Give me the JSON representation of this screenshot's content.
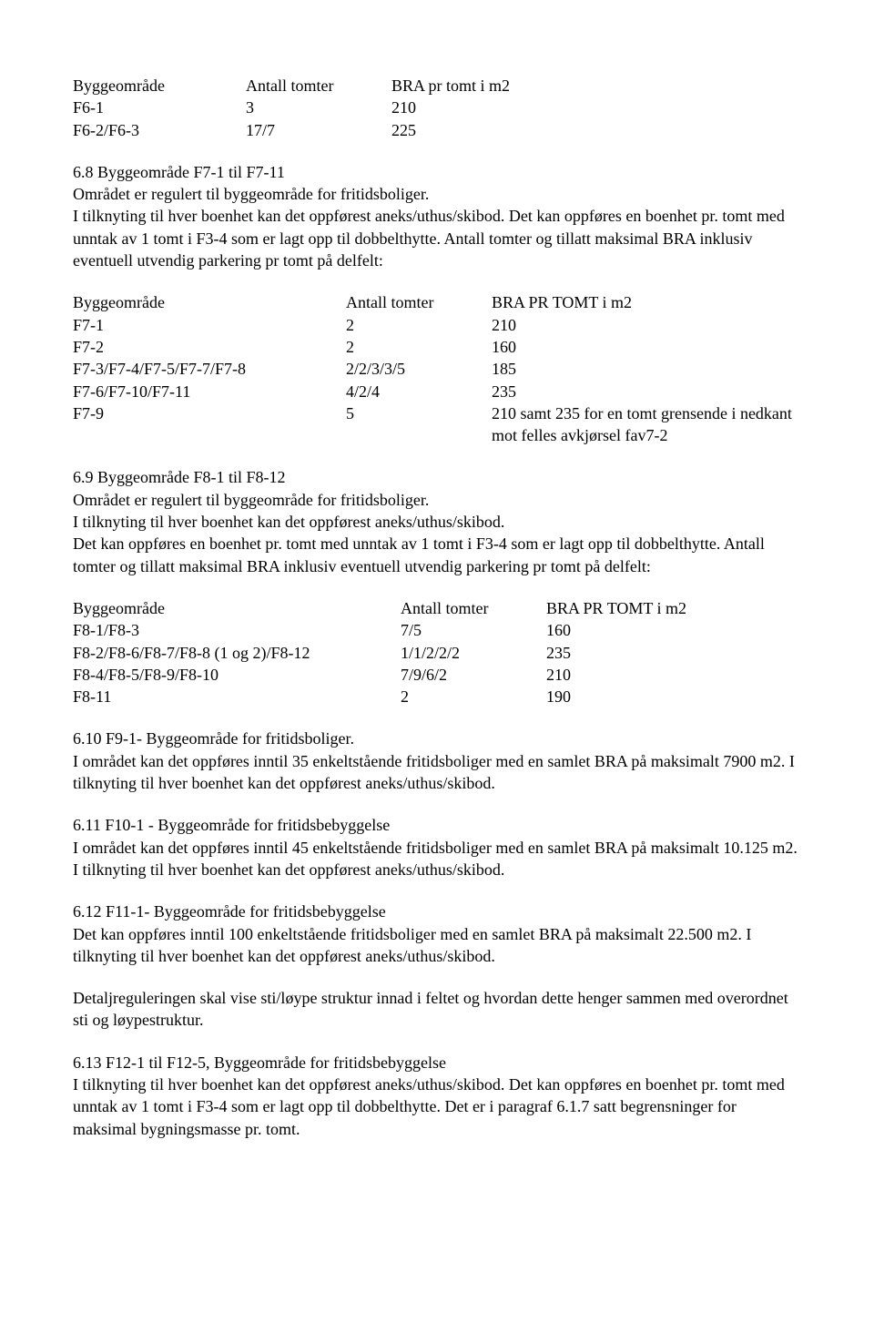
{
  "t1_head": {
    "a": "Byggeområde",
    "b": "Antall tomter",
    "c": "BRA pr tomt i m2"
  },
  "t1": [
    {
      "a": "F6-1",
      "b": "3",
      "c": "210"
    },
    {
      "a": "F6-2/F6-3",
      "b": "17/7",
      "c": "225"
    }
  ],
  "s68_title": "6.8   Byggeområde F7-1 til F7-11",
  "s68_p": "Området er regulert til byggeområde for fritidsboliger.\nI tilknyting til hver boenhet kan det oppførest aneks/uthus/skibod. Det kan oppføres en boenhet pr. tomt med unntak av 1 tomt i F3-4 som er lagt opp til dobbelthytte. Antall tomter og tillatt maksimal BRA inklusiv eventuell utvendig parkering pr tomt på delfelt:",
  "t2_head": {
    "a": "Byggeområde",
    "b": "Antall tomter",
    "c": "BRA PR TOMT i m2"
  },
  "t2": [
    {
      "a": "F7-1",
      "b": "2",
      "c": "210"
    },
    {
      "a": "F7-2",
      "b": "2",
      "c": "160"
    },
    {
      "a": "F7-3/F7-4/F7-5/F7-7/F7-8",
      "b": "2/2/3/3/5",
      "c": "185"
    },
    {
      "a": "F7-6/F7-10/F7-11",
      "b": "4/2/4",
      "c": "235"
    },
    {
      "a": "F7-9",
      "b": "5",
      "c": "210 samt 235 for en tomt grensende i nedkant mot felles avkjørsel fav7-2"
    }
  ],
  "s69_title": "6.9  Byggeområde F8-1 til F8-12",
  "s69_p": "Området er regulert til byggeområde for fritidsboliger.\nI tilknyting til hver boenhet kan det oppførest aneks/uthus/skibod.\nDet kan oppføres en boenhet pr. tomt med unntak av 1 tomt i F3-4 som er lagt opp til dobbelthytte. Antall tomter og tillatt maksimal BRA inklusiv eventuell utvendig parkering pr tomt på delfelt:",
  "t3_head": {
    "a": "Byggeområde",
    "b": "Antall tomter",
    "c": "BRA PR TOMT i m2"
  },
  "t3": [
    {
      "a": "F8-1/F8-3",
      "b": "7/5",
      "c": "160"
    },
    {
      "a": "F8-2/F8-6/F8-7/F8-8 (1 og 2)/F8-12",
      "b": "1/1/2/2/2",
      "c": "235"
    },
    {
      "a": "F8-4/F8-5/F8-9/F8-10",
      "b": "7/9/6/2",
      "c": "210"
    },
    {
      "a": "F8-11",
      "b": "2",
      "c": "190"
    }
  ],
  "s610_title": "6.10   F9-1- Byggeområde for fritidsboliger.",
  "s610_p": "I området kan det oppføres inntil 35 enkeltstående fritidsboliger med en samlet BRA på maksimalt 7900 m2. I tilknyting til hver boenhet kan det oppførest aneks/uthus/skibod.",
  "s611_title": "6.11   F10-1 - Byggeområde for fritidsbebyggelse",
  "s611_p": "I området kan det oppføres inntil 45 enkeltstående fritidsboliger med en samlet BRA på maksimalt 10.125 m2. I tilknyting til hver boenhet kan det oppførest aneks/uthus/skibod.",
  "s612_title": "6.12   F11-1- Byggeområde for fritidsbebyggelse",
  "s612_p": "Det kan oppføres inntil 100 enkeltstående fritidsboliger med en samlet BRA på maksimalt 22.500 m2. I tilknyting til hver boenhet kan det oppførest aneks/uthus/skibod.",
  "s612_p2": "Detaljreguleringen skal vise sti/løype struktur innad i feltet og hvordan dette henger sammen med overordnet sti og løypestruktur.",
  "s613_title": "6.13   F12-1 til F12-5, Byggeområde for fritidsbebyggelse",
  "s613_p": "I tilknyting til hver boenhet kan det oppførest aneks/uthus/skibod. Det kan oppføres en boenhet pr. tomt med unntak av 1 tomt i F3-4 som er lagt opp til dobbelthytte. Det er i paragraf 6.1.7 satt begrensninger for maksimal bygningsmasse pr. tomt."
}
